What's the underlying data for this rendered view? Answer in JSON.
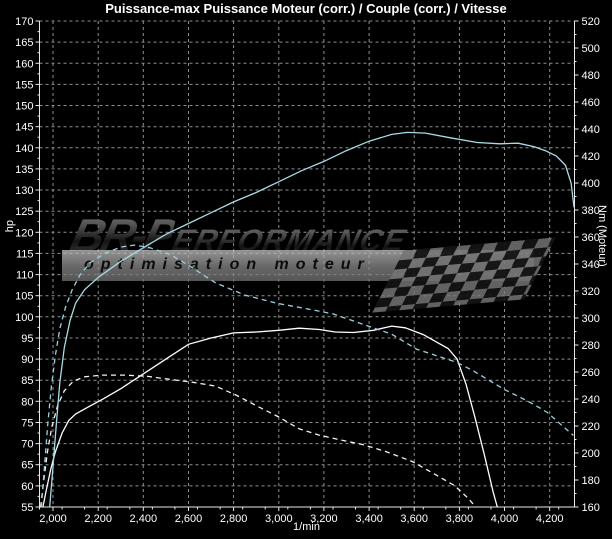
{
  "watermark": {
    "brand_bold": "BR-P",
    "brand_rest": "ERFORMANCE",
    "tagline": "optimisation moteur"
  },
  "chart_data": {
    "type": "line",
    "title": "Puissance-max Puissance Moteur (corr.) / Couple (corr.) / Vitesse",
    "xlabel": "1/min",
    "ylabel_left": "hp",
    "ylabel_right": "Nm (Moteur)",
    "x_range": [
      1940,
      4310
    ],
    "y_left": {
      "min": 55,
      "max": 170,
      "step": 5
    },
    "y_right": {
      "min": 160,
      "max": 520,
      "step": 20
    },
    "x_ticks": {
      "values": [
        2000,
        2200,
        2400,
        2600,
        2800,
        3000,
        3200,
        3400,
        3600,
        3800,
        4000,
        4200
      ],
      "labels": [
        "2,000",
        "2,200",
        "2,400",
        "2,600",
        "2,800",
        "3,000",
        "3,200",
        "3,400",
        "3,600",
        "3,800",
        "4,000",
        "4,200"
      ],
      "minor_step": 100
    },
    "grid": true,
    "legend_position": "none",
    "colors": {
      "background": "#000000",
      "grid": "#8f8f8f",
      "axis": "#e8e8e8",
      "text": "#ffffff",
      "power": "#ffffff",
      "torque": "#a9dbe6"
    },
    "series": [
      {
        "name": "puissance_moteur_corr",
        "axis": "left",
        "unit": "hp",
        "style": "solid",
        "color": "#ffffff",
        "points": [
          [
            1955,
            55
          ],
          [
            1970,
            59
          ],
          [
            1990,
            64
          ],
          [
            2010,
            68
          ],
          [
            2040,
            72.5
          ],
          [
            2070,
            75.5
          ],
          [
            2100,
            77
          ],
          [
            2160,
            78.8
          ],
          [
            2220,
            80.5
          ],
          [
            2300,
            83
          ],
          [
            2400,
            86.5
          ],
          [
            2500,
            90
          ],
          [
            2600,
            93.5
          ],
          [
            2700,
            95
          ],
          [
            2800,
            96.2
          ],
          [
            2900,
            96.4
          ],
          [
            3000,
            96.8
          ],
          [
            3090,
            97.3
          ],
          [
            3180,
            97
          ],
          [
            3250,
            96.4
          ],
          [
            3330,
            96.3
          ],
          [
            3420,
            96.8
          ],
          [
            3500,
            97.8
          ],
          [
            3560,
            97.4
          ],
          [
            3640,
            95.8
          ],
          [
            3700,
            94
          ],
          [
            3750,
            92.5
          ],
          [
            3790,
            90
          ],
          [
            3830,
            84
          ],
          [
            3870,
            76
          ],
          [
            3910,
            67.5
          ],
          [
            3950,
            58.5
          ],
          [
            3968,
            55
          ]
        ]
      },
      {
        "name": "puissance_moteur_orig",
        "axis": "left",
        "unit": "hp",
        "style": "dashed",
        "color": "#f2f2f2",
        "points": [
          [
            1945,
            55
          ],
          [
            1958,
            61
          ],
          [
            1975,
            68
          ],
          [
            1995,
            74
          ],
          [
            2020,
            79
          ],
          [
            2050,
            82.5
          ],
          [
            2090,
            84.8
          ],
          [
            2140,
            85.8
          ],
          [
            2220,
            86.2
          ],
          [
            2320,
            86.2
          ],
          [
            2420,
            85.9
          ],
          [
            2520,
            85.2
          ],
          [
            2620,
            84.5
          ],
          [
            2720,
            83.6
          ],
          [
            2810,
            81.5
          ],
          [
            2900,
            79
          ],
          [
            3000,
            76.3
          ],
          [
            3090,
            73.5
          ],
          [
            3180,
            72
          ],
          [
            3280,
            70.8
          ],
          [
            3370,
            69.8
          ],
          [
            3470,
            68.2
          ],
          [
            3590,
            65.8
          ],
          [
            3700,
            62.5
          ],
          [
            3780,
            60
          ],
          [
            3840,
            57
          ],
          [
            3872,
            55
          ]
        ]
      },
      {
        "name": "couple_corr",
        "axis": "right",
        "unit": "Nm",
        "style": "solid",
        "color": "#a9dbe6",
        "points": [
          [
            1985,
            160
          ],
          [
            2000,
            190
          ],
          [
            2015,
            222
          ],
          [
            2030,
            252
          ],
          [
            2050,
            278
          ],
          [
            2075,
            298
          ],
          [
            2100,
            311
          ],
          [
            2140,
            321
          ],
          [
            2200,
            330
          ],
          [
            2300,
            342
          ],
          [
            2400,
            352
          ],
          [
            2500,
            362
          ],
          [
            2600,
            370
          ],
          [
            2700,
            378
          ],
          [
            2800,
            386
          ],
          [
            2900,
            393
          ],
          [
            3000,
            401
          ],
          [
            3100,
            409
          ],
          [
            3200,
            416
          ],
          [
            3300,
            424
          ],
          [
            3400,
            431
          ],
          [
            3500,
            436
          ],
          [
            3570,
            437.5
          ],
          [
            3650,
            437
          ],
          [
            3760,
            433.5
          ],
          [
            3880,
            430
          ],
          [
            3980,
            429
          ],
          [
            4060,
            429.5
          ],
          [
            4130,
            427
          ],
          [
            4180,
            424
          ],
          [
            4230,
            420
          ],
          [
            4270,
            413
          ],
          [
            4295,
            400
          ],
          [
            4308,
            382
          ]
        ]
      },
      {
        "name": "couple_orig",
        "axis": "right",
        "unit": "Nm",
        "style": "dashed",
        "color": "#98d2df",
        "points": [
          [
            1948,
            160
          ],
          [
            1962,
            190
          ],
          [
            1976,
            220
          ],
          [
            1992,
            248
          ],
          [
            2010,
            272
          ],
          [
            2030,
            292
          ],
          [
            2055,
            308
          ],
          [
            2085,
            321
          ],
          [
            2120,
            332
          ],
          [
            2165,
            341
          ],
          [
            2230,
            348
          ],
          [
            2300,
            352.5
          ],
          [
            2360,
            354
          ],
          [
            2430,
            352
          ],
          [
            2520,
            347
          ],
          [
            2610,
            338
          ],
          [
            2720,
            326
          ],
          [
            2850,
            317
          ],
          [
            2990,
            311
          ],
          [
            3120,
            307
          ],
          [
            3240,
            303
          ],
          [
            3380,
            295
          ],
          [
            3500,
            288
          ],
          [
            3610,
            277
          ],
          [
            3700,
            272
          ],
          [
            3790,
            267
          ],
          [
            3860,
            261
          ],
          [
            3930,
            254
          ],
          [
            4000,
            247
          ],
          [
            4060,
            242
          ],
          [
            4130,
            236
          ],
          [
            4190,
            230
          ],
          [
            4250,
            221
          ],
          [
            4305,
            213
          ]
        ]
      }
    ]
  }
}
